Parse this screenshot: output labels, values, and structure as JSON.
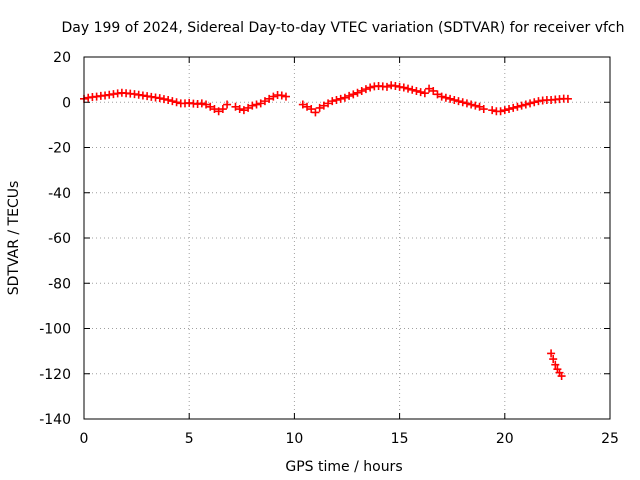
{
  "chart_data": {
    "type": "scatter",
    "title": "Day 199 of 2024, Sidereal Day-to-day VTEC variation (SDTVAR) for receiver vfch",
    "xlabel": "GPS time / hours",
    "ylabel": "SDTVAR / TECUs",
    "xlim": [
      0,
      25
    ],
    "ylim": [
      -140,
      20
    ],
    "xticks": [
      0,
      5,
      10,
      15,
      20,
      25
    ],
    "yticks": [
      20,
      0,
      -20,
      -40,
      -60,
      -80,
      -100,
      -120,
      -140
    ],
    "grid": true,
    "legend": "none",
    "marker": "+",
    "color": "#ff0000",
    "series": [
      {
        "name": "SDTVAR",
        "points": [
          [
            0.0,
            1.5
          ],
          [
            0.2,
            2.0
          ],
          [
            0.4,
            2.3
          ],
          [
            0.6,
            2.5
          ],
          [
            0.8,
            2.8
          ],
          [
            1.0,
            3.0
          ],
          [
            1.2,
            3.3
          ],
          [
            1.4,
            3.6
          ],
          [
            1.6,
            3.9
          ],
          [
            1.8,
            4.2
          ],
          [
            2.0,
            4.0
          ],
          [
            2.2,
            3.8
          ],
          [
            2.4,
            3.6
          ],
          [
            2.6,
            3.3
          ],
          [
            2.8,
            3.0
          ],
          [
            3.0,
            2.7
          ],
          [
            3.2,
            2.4
          ],
          [
            3.4,
            2.1
          ],
          [
            3.6,
            1.8
          ],
          [
            3.8,
            1.4
          ],
          [
            4.0,
            1.0
          ],
          [
            4.2,
            0.5
          ],
          [
            4.4,
            0.0
          ],
          [
            4.6,
            -0.5
          ],
          [
            4.8,
            -0.5
          ],
          [
            5.0,
            -0.3
          ],
          [
            5.2,
            -0.6
          ],
          [
            5.4,
            -0.8
          ],
          [
            5.6,
            -0.5
          ],
          [
            5.8,
            -1.0
          ],
          [
            6.0,
            -2.0
          ],
          [
            6.2,
            -3.0
          ],
          [
            6.4,
            -4.0
          ],
          [
            6.6,
            -3.0
          ],
          [
            6.8,
            -1.0
          ],
          [
            7.2,
            -2.0
          ],
          [
            7.4,
            -3.0
          ],
          [
            7.6,
            -3.5
          ],
          [
            7.8,
            -2.5
          ],
          [
            8.0,
            -1.5
          ],
          [
            8.2,
            -1.0
          ],
          [
            8.4,
            -0.5
          ],
          [
            8.6,
            0.5
          ],
          [
            8.8,
            1.5
          ],
          [
            9.0,
            2.5
          ],
          [
            9.2,
            3.2
          ],
          [
            9.4,
            3.0
          ],
          [
            9.6,
            2.5
          ],
          [
            10.4,
            -1.0
          ],
          [
            10.6,
            -2.0
          ],
          [
            10.8,
            -3.0
          ],
          [
            11.0,
            -4.5
          ],
          [
            11.2,
            -2.5
          ],
          [
            11.4,
            -1.5
          ],
          [
            11.6,
            -0.5
          ],
          [
            11.8,
            0.5
          ],
          [
            12.0,
            1.0
          ],
          [
            12.2,
            1.5
          ],
          [
            12.4,
            2.0
          ],
          [
            12.6,
            2.8
          ],
          [
            12.8,
            3.5
          ],
          [
            13.0,
            4.2
          ],
          [
            13.2,
            5.0
          ],
          [
            13.4,
            5.8
          ],
          [
            13.6,
            6.5
          ],
          [
            13.8,
            7.0
          ],
          [
            14.0,
            7.2
          ],
          [
            14.2,
            7.0
          ],
          [
            14.4,
            6.8
          ],
          [
            14.6,
            7.5
          ],
          [
            14.8,
            7.2
          ],
          [
            15.0,
            6.8
          ],
          [
            15.2,
            6.5
          ],
          [
            15.4,
            6.0
          ],
          [
            15.6,
            5.5
          ],
          [
            15.8,
            5.0
          ],
          [
            16.0,
            4.5
          ],
          [
            16.2,
            4.0
          ],
          [
            16.4,
            6.0
          ],
          [
            16.6,
            5.0
          ],
          [
            16.8,
            3.5
          ],
          [
            17.0,
            2.5
          ],
          [
            17.2,
            2.0
          ],
          [
            17.4,
            1.5
          ],
          [
            17.6,
            1.0
          ],
          [
            17.8,
            0.5
          ],
          [
            18.0,
            0.0
          ],
          [
            18.2,
            -0.5
          ],
          [
            18.4,
            -1.0
          ],
          [
            18.6,
            -1.5
          ],
          [
            18.8,
            -2.0
          ],
          [
            19.0,
            -3.0
          ],
          [
            19.4,
            -3.5
          ],
          [
            19.6,
            -4.0
          ],
          [
            19.8,
            -4.0
          ],
          [
            20.0,
            -3.5
          ],
          [
            20.2,
            -3.0
          ],
          [
            20.4,
            -2.5
          ],
          [
            20.6,
            -2.0
          ],
          [
            20.8,
            -1.5
          ],
          [
            21.0,
            -1.0
          ],
          [
            21.2,
            -0.5
          ],
          [
            21.4,
            0.0
          ],
          [
            21.6,
            0.5
          ],
          [
            21.8,
            0.8
          ],
          [
            22.0,
            1.0
          ],
          [
            22.2,
            1.0
          ],
          [
            22.4,
            1.2
          ],
          [
            22.6,
            1.4
          ],
          [
            22.8,
            1.6
          ],
          [
            23.0,
            1.5
          ],
          [
            22.2,
            -111.0
          ],
          [
            22.3,
            -113.5
          ],
          [
            22.4,
            -116.0
          ],
          [
            22.5,
            -118.0
          ],
          [
            22.6,
            -119.5
          ],
          [
            22.7,
            -121.0
          ]
        ]
      }
    ]
  }
}
